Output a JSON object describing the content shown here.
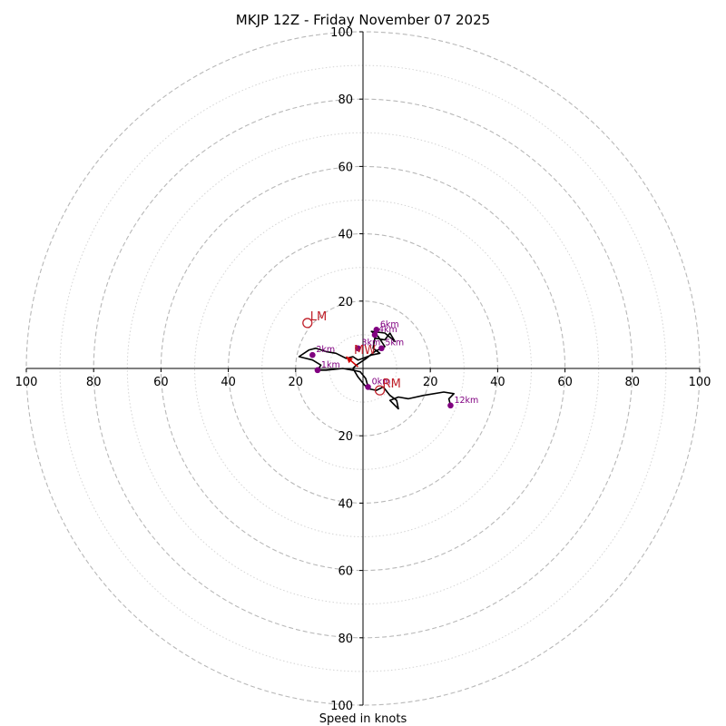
{
  "chart_data": {
    "type": "hodograph",
    "title": "MKJP 12Z - Friday November 07 2025",
    "xlabel": "Speed in knots",
    "range": [
      -100,
      100
    ],
    "ring_values_major": [
      20,
      40,
      60,
      80,
      100
    ],
    "ring_values_minor": [
      10,
      30,
      50,
      70,
      90
    ],
    "x_tick_labels": [
      "100",
      "80",
      "60",
      "40",
      "20",
      "20",
      "40",
      "60",
      "80",
      "100"
    ],
    "x_tick_values": [
      -100,
      -80,
      -60,
      -40,
      -20,
      20,
      40,
      60,
      80,
      100
    ],
    "y_tick_labels": [
      "100",
      "80",
      "60",
      "40",
      "20",
      "20",
      "40",
      "60",
      "80",
      "100"
    ],
    "y_tick_values": [
      100,
      80,
      60,
      40,
      20,
      -20,
      -40,
      -60,
      -80,
      -100
    ],
    "hodograph": {
      "name": "wind profile",
      "color": "#000000",
      "points": [
        [
          1.5,
          -5.5
        ],
        [
          0.8,
          -3.0
        ],
        [
          -0.8,
          -1.0
        ],
        [
          -3.0,
          -0.5
        ],
        [
          -6.0,
          0.0
        ],
        [
          -11.0,
          -0.5
        ],
        [
          -13.5,
          -0.5
        ],
        [
          -12.5,
          1.0
        ],
        [
          -15.0,
          2.5
        ],
        [
          -19.0,
          3.5
        ],
        [
          -16.0,
          5.5
        ],
        [
          -14.0,
          6.0
        ],
        [
          -11.0,
          5.0
        ],
        [
          -8.0,
          4.5
        ],
        [
          -5.0,
          3.0
        ],
        [
          -3.0,
          3.5
        ],
        [
          -1.5,
          2.5
        ],
        [
          0.0,
          3.0
        ],
        [
          2.5,
          4.0
        ],
        [
          5.0,
          4.5
        ],
        [
          3.0,
          6.0
        ],
        [
          3.5,
          9.0
        ],
        [
          6.5,
          8.5
        ],
        [
          8.0,
          10.5
        ],
        [
          9.5,
          8.0
        ],
        [
          6.5,
          10.5
        ],
        [
          2.5,
          11.0
        ],
        [
          4.5,
          9.5
        ],
        [
          6.5,
          6.5
        ],
        [
          5.5,
          6.0
        ],
        [
          3.5,
          5.0
        ],
        [
          1.0,
          3.0
        ],
        [
          -2.0,
          1.0
        ],
        [
          -3.0,
          0.0
        ],
        [
          -1.5,
          -2.5
        ],
        [
          0.5,
          -5.0
        ],
        [
          1.5,
          -6.0
        ],
        [
          4.0,
          -6.5
        ],
        [
          6.0,
          -5.5
        ],
        [
          8.0,
          -8.0
        ],
        [
          10.0,
          -9.5
        ],
        [
          10.5,
          -12.0
        ],
        [
          8.0,
          -9.5
        ],
        [
          10.5,
          -8.5
        ],
        [
          13.5,
          -9.0
        ],
        [
          18.0,
          -8.0
        ],
        [
          24.0,
          -7.0
        ],
        [
          27.0,
          -7.5
        ],
        [
          25.5,
          -9.0
        ],
        [
          26.0,
          -11.0
        ]
      ]
    },
    "height_markers": [
      {
        "label": "0km",
        "u": 1.5,
        "v": -5.5
      },
      {
        "label": "1km",
        "u": -13.5,
        "v": -0.5
      },
      {
        "label": "2km",
        "u": -15.0,
        "v": 4.0
      },
      {
        "label": "3km",
        "u": -1.5,
        "v": 6.0
      },
      {
        "label": "4km",
        "u": 3.5,
        "v": 10.0
      },
      {
        "label": "5km",
        "u": 5.5,
        "v": 6.0
      },
      {
        "label": "6km",
        "u": 4.0,
        "v": 11.5
      },
      {
        "label": "12km",
        "u": 26.0,
        "v": -11.0
      }
    ],
    "storm_motion": [
      {
        "label": "LM",
        "u": -16.5,
        "v": 13.5,
        "style": "open-circle",
        "color": "#c0202a"
      },
      {
        "label": "MW",
        "u": -3.5,
        "v": 3.5,
        "style": "text",
        "color": "#c0202a"
      },
      {
        "label": "RM",
        "u": 5.0,
        "v": -6.5,
        "style": "open-circle",
        "color": "#c0202a"
      }
    ],
    "shear_vector": {
      "name": "Bunkers shear arrow",
      "from": [
        -1.5,
        0.5
      ],
      "to": [
        -5.0,
        3.5
      ],
      "color": "#d00000"
    },
    "colors": {
      "marker": "#800080",
      "storm": "#c0202a",
      "ring": "#b8b8b8",
      "axis": "#000000"
    }
  }
}
